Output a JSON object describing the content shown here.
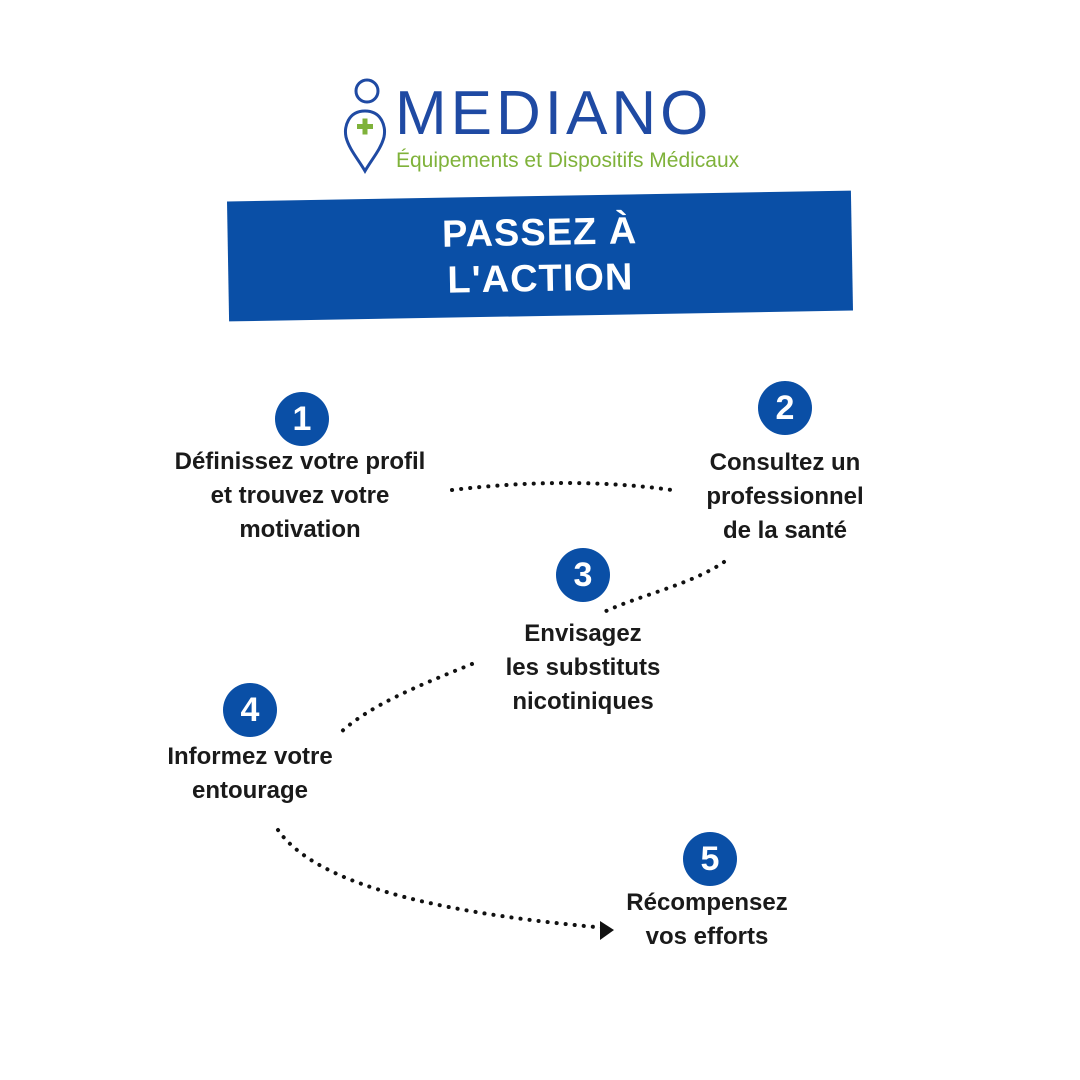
{
  "logo": {
    "brand": "MEDIANO",
    "tagline": "Équipements et Dispositifs Médicaux",
    "brand_color": "#1f4aa3",
    "tagline_color": "#7fb23a"
  },
  "banner": {
    "lines": [
      "PASSEZ À",
      "L'ACTION"
    ],
    "color": "#0a4fa6"
  },
  "steps": [
    {
      "number": "1",
      "lines": [
        "Définissez votre profil",
        "et trouvez votre",
        "motivation"
      ]
    },
    {
      "number": "2",
      "lines": [
        "Consultez un",
        "professionnel",
        "de la santé"
      ]
    },
    {
      "number": "3",
      "lines": [
        "Envisagez",
        "les substituts",
        "nicotiniques"
      ]
    },
    {
      "number": "4",
      "lines": [
        "Informez votre",
        "entourage"
      ]
    },
    {
      "number": "5",
      "lines": [
        "Récompensez",
        "vos efforts"
      ]
    }
  ]
}
